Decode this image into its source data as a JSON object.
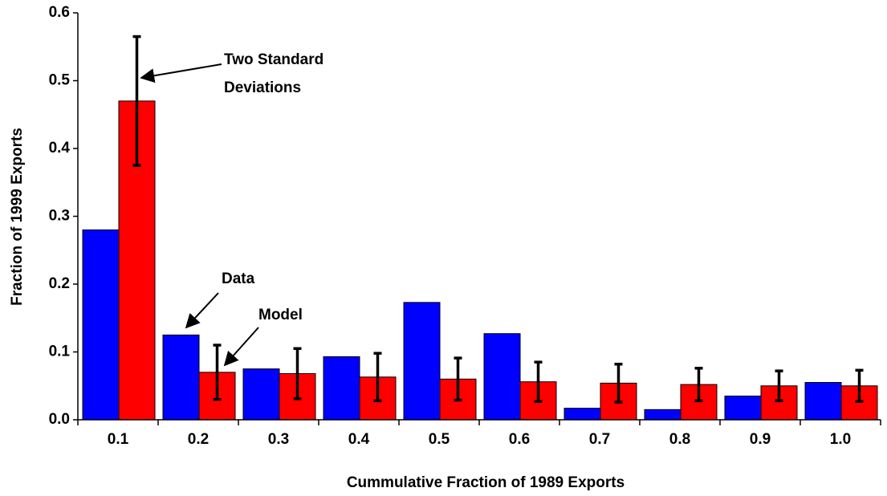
{
  "chart_data": {
    "type": "bar",
    "xlabel": "Cummulative Fraction of 1989 Exports",
    "ylabel": "Fraction of 1999 Exports",
    "categories": [
      "0.1",
      "0.2",
      "0.3",
      "0.4",
      "0.5",
      "0.6",
      "0.7",
      "0.8",
      "0.9",
      "1.0"
    ],
    "series": [
      {
        "color": "#0000ff",
        "values": [
          0.28,
          0.125,
          0.075,
          0.093,
          0.173,
          0.127,
          0.017,
          0.015,
          0.035,
          0.055
        ]
      },
      {
        "color": "#ff0000",
        "values": [
          0.47,
          0.07,
          0.068,
          0.063,
          0.06,
          0.056,
          0.054,
          0.052,
          0.05,
          0.05
        ],
        "errors": [
          0.095,
          0.04,
          0.037,
          0.035,
          0.031,
          0.029,
          0.028,
          0.024,
          0.022,
          0.023
        ]
      }
    ],
    "ylim": [
      0,
      0.6
    ],
    "yticks": [
      {
        "value": 0,
        "label": "0.0"
      },
      0.1,
      0.2,
      0.3,
      0.4,
      0.5,
      0.6
    ],
    "grid": false,
    "annotations": [
      [
        "Two Standard",
        "Deviations"
      ],
      [
        "Data"
      ],
      [
        "Model"
      ]
    ]
  }
}
